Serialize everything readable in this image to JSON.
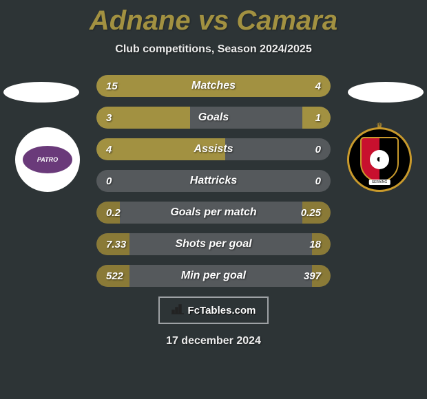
{
  "title": "Adnane vs Camara",
  "subtitle": "Club competitions, Season 2024/2025",
  "date": "17 december 2024",
  "brand": {
    "text": "FcTables.com"
  },
  "colors": {
    "bar_fill": "#a29141",
    "bar_fill_alt": "#8a7a37",
    "bar_bg": "#55595c",
    "title_color": "#a29141"
  },
  "club_left": {
    "label": "PATRO"
  },
  "club_right": {
    "banner": "SERAING"
  },
  "stats": [
    {
      "label": "Matches",
      "left_val": "15",
      "right_val": "4",
      "left_pct": 78,
      "right_pct": 22,
      "left_color": "#a29141",
      "right_color": "#a29141"
    },
    {
      "label": "Goals",
      "left_val": "3",
      "right_val": "1",
      "left_pct": 40,
      "right_pct": 12,
      "left_color": "#a29141",
      "right_color": "#a29141"
    },
    {
      "label": "Assists",
      "left_val": "4",
      "right_val": "0",
      "left_pct": 55,
      "right_pct": 0,
      "left_color": "#a29141",
      "right_color": "#a29141"
    },
    {
      "label": "Hattricks",
      "left_val": "0",
      "right_val": "0",
      "left_pct": 0,
      "right_pct": 0,
      "left_color": "#a29141",
      "right_color": "#a29141"
    },
    {
      "label": "Goals per match",
      "left_val": "0.2",
      "right_val": "0.25",
      "left_pct": 10,
      "right_pct": 12,
      "left_color": "#8a7a37",
      "right_color": "#8a7a37"
    },
    {
      "label": "Shots per goal",
      "left_val": "7.33",
      "right_val": "18",
      "left_pct": 14,
      "right_pct": 8,
      "left_color": "#8a7a37",
      "right_color": "#8a7a37"
    },
    {
      "label": "Min per goal",
      "left_val": "522",
      "right_val": "397",
      "left_pct": 14,
      "right_pct": 8,
      "left_color": "#8a7a37",
      "right_color": "#8a7a37"
    }
  ]
}
